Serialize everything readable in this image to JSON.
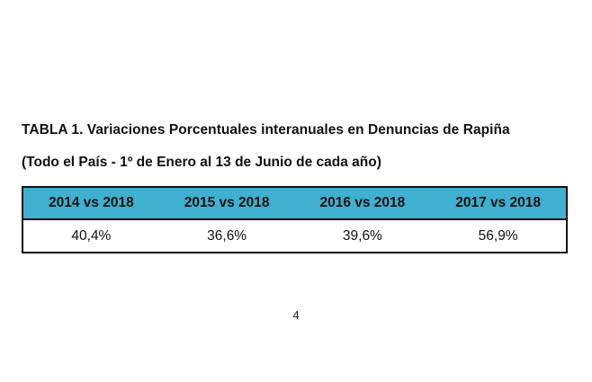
{
  "document": {
    "title": "TABLA 1. Variaciones Porcentuales interanuales en Denuncias de Rapiña",
    "subtitle": "(Todo el País - 1º de Enero al 13 de Junio de cada año)",
    "table": {
      "header_color": "#3fb0cf",
      "headers": [
        "2014 vs 2018",
        "2015 vs 2018",
        "2016 vs 2018",
        "2017 vs 2018"
      ],
      "values": [
        "40,4%",
        "36,6%",
        "39,6%",
        "56,9%"
      ]
    },
    "page_number": "4"
  }
}
